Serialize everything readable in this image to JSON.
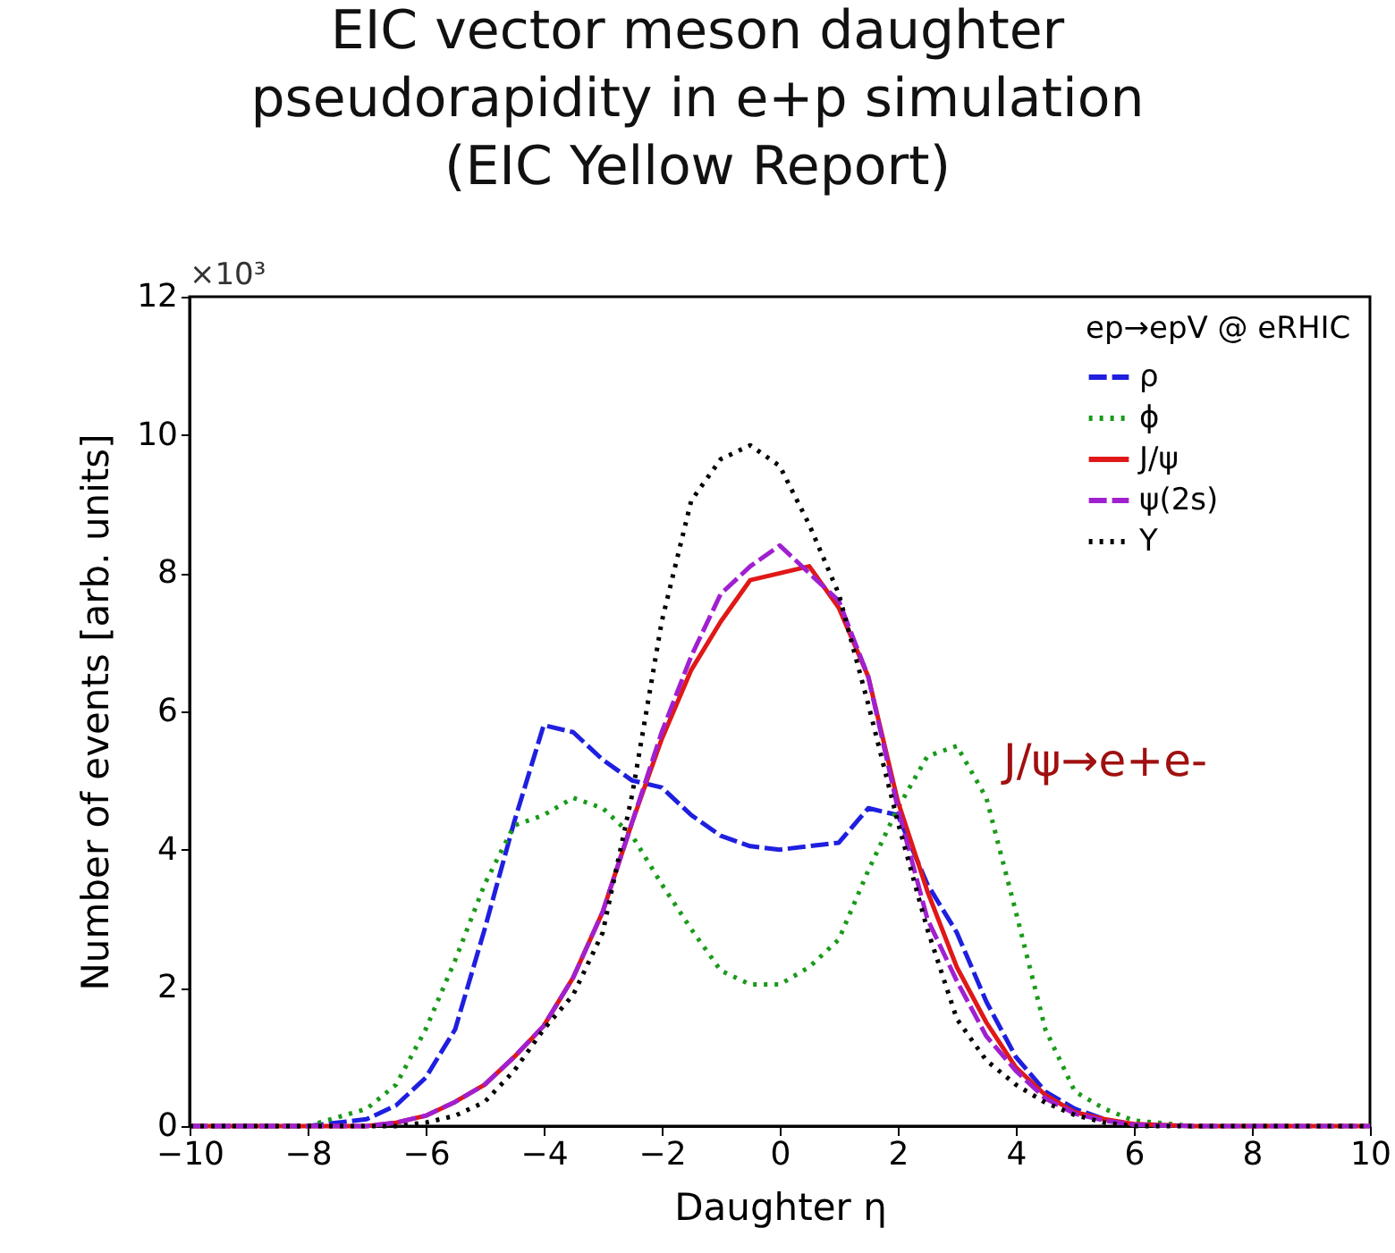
{
  "chart_data": {
    "type": "line",
    "title": "EIC vector meson daughter pseudorapidity in e+p simulation (EIC Yellow Report)",
    "xlabel": "Daughter η",
    "ylabel": "Number of events [arb. units]",
    "legend_title": "ep→epV @ eRHIC",
    "annotations": [
      "×10³",
      "J/ψ→e+e-"
    ],
    "x": [
      -10,
      -8,
      -7,
      -6.5,
      -6,
      -5.5,
      -5,
      -4.5,
      -4,
      -3.5,
      -3,
      -2.5,
      -2,
      -1.5,
      -1,
      -0.5,
      0,
      0.5,
      1,
      1.5,
      2,
      2.5,
      3,
      3.5,
      4,
      4.5,
      5,
      5.5,
      6,
      7,
      8,
      10
    ],
    "series": [
      {
        "name": "ρ",
        "color": "#1f1fe0",
        "line_style": "dashed",
        "values": [
          0,
          0,
          0.1,
          0.3,
          0.7,
          1.4,
          2.85,
          4.4,
          5.8,
          5.7,
          5.3,
          5.0,
          4.9,
          4.5,
          4.2,
          4.05,
          4.0,
          4.05,
          4.1,
          4.6,
          4.5,
          3.5,
          2.8,
          1.8,
          1.0,
          0.5,
          0.25,
          0.1,
          null,
          null,
          null,
          null
        ]
      },
      {
        "name": "ϕ",
        "color": "#1a9a1a",
        "line_style": "dotted",
        "values": [
          0,
          0,
          0.25,
          0.6,
          1.4,
          2.4,
          3.5,
          4.35,
          4.5,
          4.75,
          4.6,
          4.2,
          3.5,
          2.85,
          2.25,
          2.05,
          2.05,
          2.3,
          2.7,
          3.7,
          4.6,
          5.35,
          5.5,
          4.75,
          3.1,
          1.4,
          0.5,
          0.25,
          0.08,
          0,
          0,
          0
        ]
      },
      {
        "name": "J/ψ",
        "color": "#e01818",
        "line_style": "solid",
        "values": [
          0,
          0,
          0,
          0.05,
          0.15,
          0.35,
          0.6,
          1.0,
          1.45,
          2.15,
          3.1,
          4.4,
          5.6,
          6.6,
          7.3,
          7.9,
          8.0,
          8.1,
          7.5,
          6.5,
          4.7,
          3.4,
          2.3,
          1.5,
          0.85,
          0.45,
          0.2,
          0.1,
          0.03,
          0,
          0,
          0
        ]
      },
      {
        "name": "ψ(2s)",
        "color": "#a020d0",
        "line_style": "dashed",
        "values": [
          0,
          0,
          0,
          0.05,
          0.15,
          0.35,
          0.6,
          1.0,
          1.45,
          2.15,
          3.1,
          4.4,
          5.7,
          6.8,
          7.7,
          8.1,
          8.4,
          8.0,
          7.6,
          6.5,
          4.6,
          3.0,
          2.1,
          1.3,
          0.8,
          0.4,
          0.18,
          0.08,
          0.02,
          0,
          0,
          0
        ]
      },
      {
        "name": "Υ",
        "color": "#000000",
        "line_style": "dotted",
        "values": [
          0,
          0,
          0,
          0,
          0.05,
          0.15,
          0.35,
          0.8,
          1.4,
          1.9,
          2.8,
          4.8,
          7.3,
          9.05,
          9.65,
          9.85,
          9.55,
          8.7,
          7.7,
          6.1,
          4.4,
          2.85,
          1.55,
          0.95,
          0.6,
          0.34,
          0.16,
          0.05,
          0,
          0,
          0,
          0
        ]
      }
    ],
    "xlim": [
      -10,
      10
    ],
    "ylim": [
      0,
      12
    ],
    "xticks": [
      -10,
      -8,
      -6,
      -4,
      -2,
      0,
      2,
      4,
      6,
      8,
      10
    ],
    "yticks": [
      0,
      2,
      4,
      6,
      8,
      10,
      12
    ],
    "legend": "top right",
    "marker": "none",
    "grid": false
  }
}
